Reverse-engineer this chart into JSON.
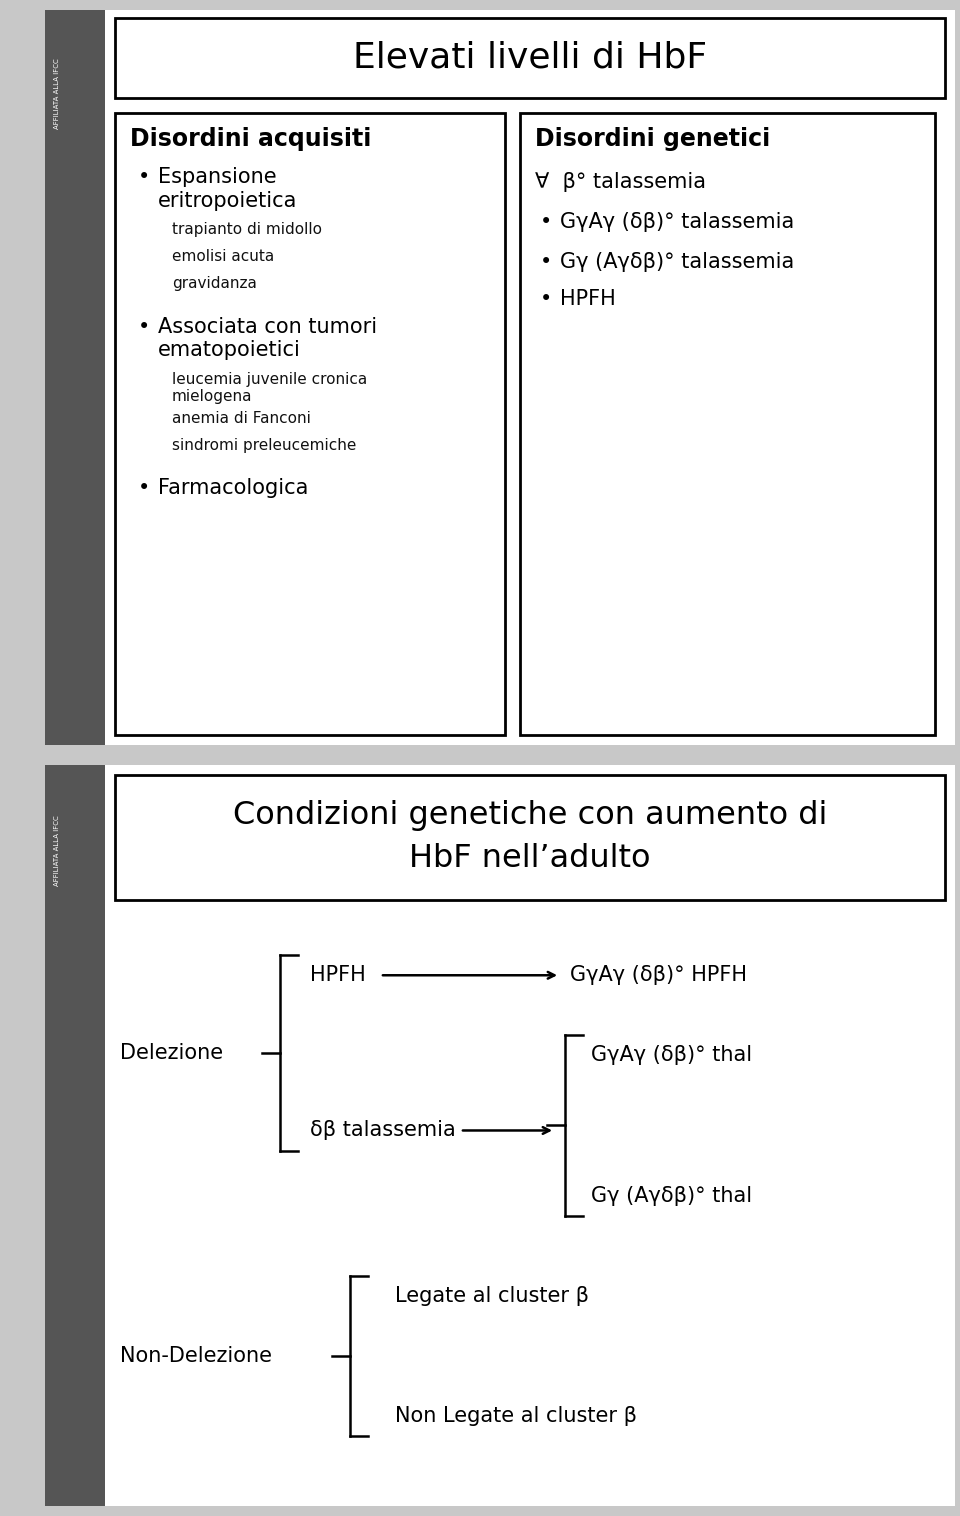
{
  "bg_color": "#c8c8c8",
  "slide_bg": "#ffffff",
  "sidebar_color": "#4a4a4a",
  "slide1": {
    "title": "Elevati livelli di HbF",
    "box1_title": "Disordini acquisiti",
    "box2_title": "Disordini genetici",
    "box2_line0": "∀  β° talassemia",
    "box2_items": [
      "GγAγ (δβ)° talassemia",
      "Gγ (Aγδβ)° talassemia",
      "HPFH"
    ]
  },
  "slide2": {
    "title": "Condizioni genetiche con aumento di\nHbF nell’adulto",
    "label_delezione": "Delezione",
    "label_non_delezione": "Non-Delezione",
    "label_hpfh": "HPFH",
    "label_db_thal": "δβ talassemia",
    "arrow1_label": "GγAγ (δβ)° HPFH",
    "arrow2_label1": "GγAγ (δβ)° thal",
    "arrow2_label2": "Gγ (Aγδβ)° thal",
    "nd_label1": "Legate al cluster β",
    "nd_label2": "Non Legate al cluster β"
  }
}
